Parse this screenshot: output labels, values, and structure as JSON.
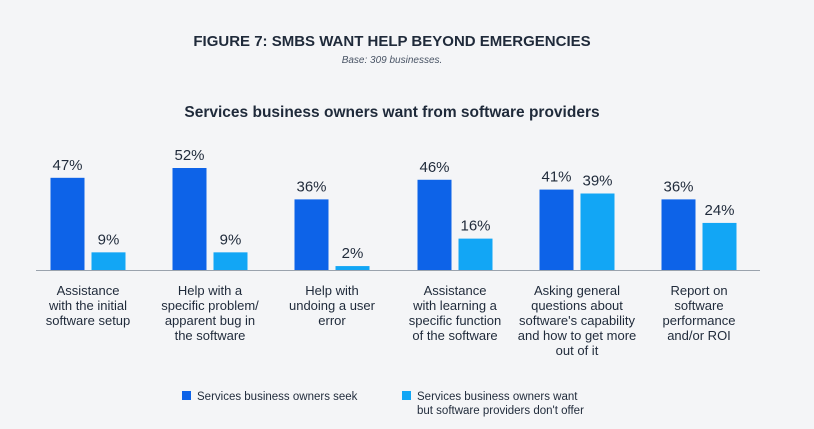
{
  "figure": {
    "title": "FIGURE 7: SMBS WANT HELP BEYOND EMERGENCIES",
    "base_note": "Base: 309 businesses."
  },
  "colors": {
    "series_0": "#0d63e8",
    "series_1": "#12a6f5",
    "axis": "#9aa3ad"
  },
  "chart_data": {
    "type": "bar",
    "title": "Services business owners want from software providers",
    "xlabel": "",
    "ylabel": "",
    "ylim": [
      0,
      60
    ],
    "grid": false,
    "legend_position": "bottom",
    "value_suffix": "%",
    "categories": [
      [
        "Assistance",
        "with the initial",
        "software setup"
      ],
      [
        "Help with a",
        "specific problem/",
        "apparent bug in",
        "the software"
      ],
      [
        "Help with",
        "undoing a user",
        "error"
      ],
      [
        "Assistance",
        "with learning a",
        "specific function",
        "of the software"
      ],
      [
        "Asking general",
        "questions about",
        "software's capability",
        "and how to get more",
        "out of it"
      ],
      [
        "Report on",
        "software",
        "performance",
        "and/or ROI"
      ]
    ],
    "series": [
      {
        "name": "Services business owners seek",
        "values": [
          47,
          52,
          36,
          46,
          41,
          36
        ]
      },
      {
        "name": [
          "Services business owners want",
          "but software providers don't offer"
        ],
        "values": [
          9,
          9,
          2,
          16,
          39,
          24
        ]
      }
    ]
  }
}
